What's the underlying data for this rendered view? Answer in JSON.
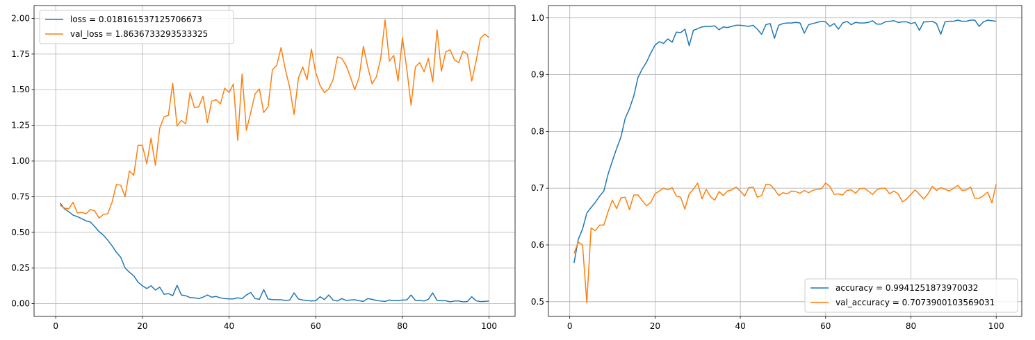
{
  "chart_data": [
    {
      "type": "line",
      "title": "",
      "xlabel": "",
      "ylabel": "",
      "xlim": [
        -5,
        106
      ],
      "ylim": [
        -0.09,
        2.09
      ],
      "xticks": [
        0,
        20,
        40,
        60,
        80,
        100
      ],
      "xtick_labels": [
        "0",
        "20",
        "40",
        "60",
        "80",
        "100"
      ],
      "yticks": [
        0.0,
        0.25,
        0.5,
        0.75,
        1.0,
        1.25,
        1.5,
        1.75,
        2.0
      ],
      "ytick_labels": [
        "0.00",
        "0.25",
        "0.50",
        "0.75",
        "1.00",
        "1.25",
        "1.50",
        "1.75",
        "2.00"
      ],
      "grid": true,
      "legend_position": "upper-left",
      "x": [
        1,
        2,
        3,
        4,
        5,
        6,
        7,
        8,
        9,
        10,
        11,
        12,
        13,
        14,
        15,
        16,
        17,
        18,
        19,
        20,
        21,
        22,
        23,
        24,
        25,
        26,
        27,
        28,
        29,
        30,
        31,
        32,
        33,
        34,
        35,
        36,
        37,
        38,
        39,
        40,
        41,
        42,
        43,
        44,
        45,
        46,
        47,
        48,
        49,
        50,
        51,
        52,
        53,
        54,
        55,
        56,
        57,
        58,
        59,
        60,
        61,
        62,
        63,
        64,
        65,
        66,
        67,
        68,
        69,
        70,
        71,
        72,
        73,
        74,
        75,
        76,
        77,
        78,
        79,
        80,
        81,
        82,
        83,
        84,
        85,
        86,
        87,
        88,
        89,
        90,
        91,
        92,
        93,
        94,
        95,
        96,
        97,
        98,
        99,
        100
      ],
      "series": [
        {
          "name": "loss = 0.018161537125706673",
          "color": "#1f77b4",
          "values": [
            0.705,
            0.665,
            0.645,
            0.62,
            0.61,
            0.595,
            0.58,
            0.572,
            0.54,
            0.505,
            0.48,
            0.445,
            0.405,
            0.36,
            0.325,
            0.25,
            0.22,
            0.195,
            0.15,
            0.125,
            0.105,
            0.125,
            0.095,
            0.115,
            0.065,
            0.07,
            0.055,
            0.128,
            0.06,
            0.055,
            0.042,
            0.04,
            0.035,
            0.045,
            0.06,
            0.045,
            0.05,
            0.04,
            0.035,
            0.033,
            0.033,
            0.04,
            0.035,
            0.06,
            0.078,
            0.035,
            0.03,
            0.098,
            0.032,
            0.028,
            0.027,
            0.027,
            0.022,
            0.025,
            0.075,
            0.032,
            0.025,
            0.022,
            0.018,
            0.02,
            0.048,
            0.028,
            0.06,
            0.025,
            0.018,
            0.035,
            0.022,
            0.025,
            0.027,
            0.02,
            0.015,
            0.035,
            0.03,
            0.022,
            0.018,
            0.015,
            0.025,
            0.022,
            0.02,
            0.025,
            0.025,
            0.06,
            0.022,
            0.022,
            0.018,
            0.03,
            0.075,
            0.022,
            0.02,
            0.02,
            0.012,
            0.018,
            0.018,
            0.012,
            0.014,
            0.048,
            0.02,
            0.014,
            0.015,
            0.018
          ]
        },
        {
          "name": "val_loss = 1.8636733293533325",
          "color": "#ff7f0e",
          "values": [
            0.69,
            0.67,
            0.665,
            0.71,
            0.635,
            0.64,
            0.63,
            0.66,
            0.65,
            0.6,
            0.625,
            0.63,
            0.71,
            0.835,
            0.83,
            0.75,
            0.93,
            0.9,
            1.11,
            1.11,
            0.98,
            1.16,
            0.97,
            1.23,
            1.31,
            1.32,
            1.545,
            1.245,
            1.285,
            1.26,
            1.48,
            1.375,
            1.38,
            1.455,
            1.27,
            1.42,
            1.43,
            1.4,
            1.51,
            1.48,
            1.54,
            1.145,
            1.61,
            1.215,
            1.34,
            1.47,
            1.505,
            1.34,
            1.38,
            1.64,
            1.67,
            1.795,
            1.64,
            1.515,
            1.325,
            1.58,
            1.66,
            1.57,
            1.785,
            1.62,
            1.53,
            1.48,
            1.505,
            1.57,
            1.73,
            1.72,
            1.67,
            1.59,
            1.5,
            1.585,
            1.805,
            1.66,
            1.54,
            1.59,
            1.72,
            1.99,
            1.7,
            1.74,
            1.56,
            1.865,
            1.65,
            1.39,
            1.66,
            1.69,
            1.625,
            1.72,
            1.555,
            1.92,
            1.63,
            1.765,
            1.78,
            1.71,
            1.69,
            1.77,
            1.75,
            1.56,
            1.7,
            1.86,
            1.89,
            1.865
          ]
        }
      ]
    },
    {
      "type": "line",
      "title": "",
      "xlabel": "",
      "ylabel": "",
      "xlim": [
        -5,
        106
      ],
      "ylim": [
        0.4741,
        1.0217
      ],
      "xticks": [
        0,
        20,
        40,
        60,
        80,
        100
      ],
      "xtick_labels": [
        "0",
        "20",
        "40",
        "60",
        "80",
        "100"
      ],
      "yticks": [
        0.5,
        0.6,
        0.7,
        0.8,
        0.9,
        1.0
      ],
      "ytick_labels": [
        "0.5",
        "0.6",
        "0.7",
        "0.8",
        "0.9",
        "1.0"
      ],
      "grid": true,
      "legend_position": "lower-right",
      "x": [
        1,
        2,
        3,
        4,
        5,
        6,
        7,
        8,
        9,
        10,
        11,
        12,
        13,
        14,
        15,
        16,
        17,
        18,
        19,
        20,
        21,
        22,
        23,
        24,
        25,
        26,
        27,
        28,
        29,
        30,
        31,
        32,
        33,
        34,
        35,
        36,
        37,
        38,
        39,
        40,
        41,
        42,
        43,
        44,
        45,
        46,
        47,
        48,
        49,
        50,
        51,
        52,
        53,
        54,
        55,
        56,
        57,
        58,
        59,
        60,
        61,
        62,
        63,
        64,
        65,
        66,
        67,
        68,
        69,
        70,
        71,
        72,
        73,
        74,
        75,
        76,
        77,
        78,
        79,
        80,
        81,
        82,
        83,
        84,
        85,
        86,
        87,
        88,
        89,
        90,
        91,
        92,
        93,
        94,
        95,
        96,
        97,
        98,
        99,
        100
      ],
      "series": [
        {
          "name": "accuracy = 0.9941251873970032",
          "color": "#1f77b4",
          "values": [
            0.568,
            0.61,
            0.628,
            0.656,
            0.666,
            0.675,
            0.686,
            0.695,
            0.725,
            0.748,
            0.77,
            0.79,
            0.823,
            0.84,
            0.862,
            0.895,
            0.91,
            0.922,
            0.938,
            0.952,
            0.958,
            0.955,
            0.963,
            0.957,
            0.975,
            0.974,
            0.98,
            0.951,
            0.978,
            0.981,
            0.984,
            0.985,
            0.985,
            0.986,
            0.979,
            0.984,
            0.983,
            0.985,
            0.987,
            0.987,
            0.986,
            0.985,
            0.987,
            0.98,
            0.971,
            0.988,
            0.99,
            0.964,
            0.987,
            0.99,
            0.991,
            0.991,
            0.992,
            0.991,
            0.973,
            0.988,
            0.99,
            0.992,
            0.994,
            0.993,
            0.985,
            0.99,
            0.98,
            0.991,
            0.994,
            0.988,
            0.992,
            0.991,
            0.991,
            0.992,
            0.995,
            0.989,
            0.989,
            0.993,
            0.994,
            0.995,
            0.992,
            0.993,
            0.993,
            0.99,
            0.992,
            0.978,
            0.993,
            0.993,
            0.994,
            0.99,
            0.971,
            0.993,
            0.994,
            0.994,
            0.996,
            0.994,
            0.994,
            0.996,
            0.996,
            0.985,
            0.993,
            0.996,
            0.995,
            0.994
          ]
        },
        {
          "name": "val_accuracy = 0.7073900103569031",
          "color": "#ff7f0e",
          "values": [
            0.585,
            0.605,
            0.6,
            0.498,
            0.63,
            0.625,
            0.635,
            0.635,
            0.659,
            0.679,
            0.664,
            0.683,
            0.684,
            0.662,
            0.688,
            0.688,
            0.678,
            0.669,
            0.675,
            0.69,
            0.695,
            0.7,
            0.697,
            0.701,
            0.686,
            0.684,
            0.663,
            0.69,
            0.698,
            0.709,
            0.681,
            0.698,
            0.685,
            0.679,
            0.694,
            0.687,
            0.695,
            0.697,
            0.702,
            0.695,
            0.686,
            0.701,
            0.702,
            0.684,
            0.687,
            0.707,
            0.706,
            0.698,
            0.687,
            0.692,
            0.69,
            0.695,
            0.694,
            0.691,
            0.696,
            0.692,
            0.696,
            0.698,
            0.699,
            0.709,
            0.703,
            0.689,
            0.69,
            0.688,
            0.696,
            0.697,
            0.691,
            0.699,
            0.7,
            0.695,
            0.689,
            0.697,
            0.7,
            0.7,
            0.69,
            0.695,
            0.69,
            0.676,
            0.681,
            0.689,
            0.697,
            0.689,
            0.681,
            0.69,
            0.703,
            0.696,
            0.701,
            0.698,
            0.695,
            0.7,
            0.705,
            0.696,
            0.697,
            0.702,
            0.682,
            0.682,
            0.687,
            0.693,
            0.674,
            0.707
          ]
        }
      ]
    }
  ]
}
